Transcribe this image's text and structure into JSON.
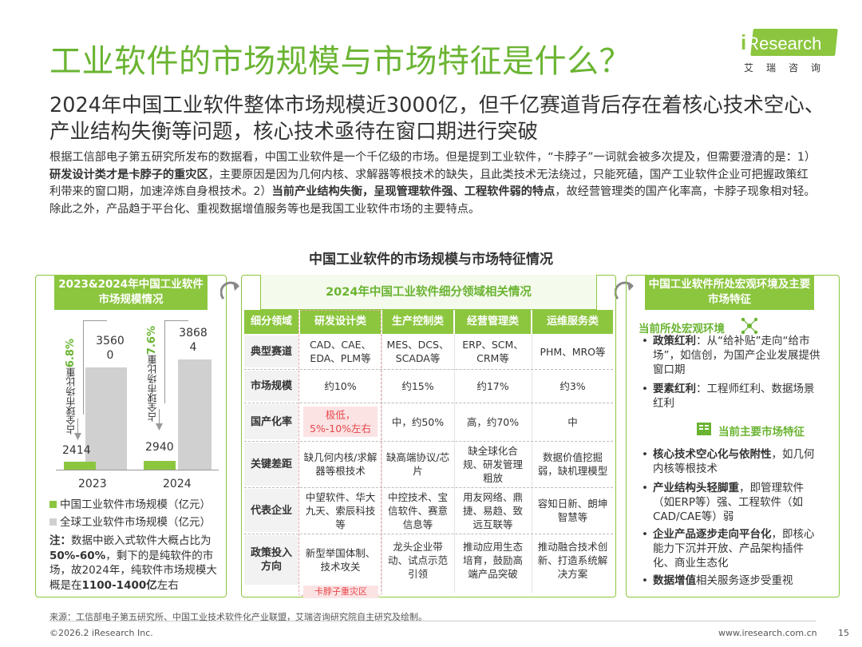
{
  "title": "工业软件的市场规模与市场特征是什么？",
  "logo": {
    "brand_i": "i",
    "brand_rest": "Research",
    "sub": "艾瑞咨询"
  },
  "subtitle": "2024年中国工业软件整体市场规模近3000亿，但千亿赛道背后存在着核心技术空心、产业结构失衡等问题，核心技术亟待在窗口期进行突破",
  "intro": {
    "p1": "根据工信部电子第五研究所发布的数据看，中国工业软件是一个千亿级的市场。但是提到工业软件，“卡脖子”一词就会被多次提及，但需要澄清的是：1）",
    "b1": "研发设计类才是卡脖子的重灾区",
    "p2": "，主要原因是因为几何内核、求解器等根技术的缺失，且此类技术无法绕过，只能死磕，国产工业软件企业可把握政策红利带来的窗口期，加速淬炼自身根技术。2）",
    "b2": "当前产业结构失衡，呈现管理软件强、工程软件弱的特点",
    "p3": "，故经营管理类的国产化率高，卡脖子现象相对轻。除此之外，产品趋于平台化、重视数据增值服务等也是我国工业软件市场的主要特点。"
  },
  "chart_title": "中国工业软件的市场规模与市场特征情况",
  "left_panel": {
    "header": "2023&2024年中国工业软件市场规模情况",
    "legend_china": "中国工业软件市场规模（亿元）",
    "legend_global": "全球工业软件市场规模（亿元）",
    "note_prefix": "注：",
    "note_1": "数据中嵌入式软件大概占比为",
    "note_b1": "50%-60%",
    "note_2": "，剩下的是纯软件的市场，故2024年，纯软件市场规模大概是在",
    "note_b2": "1100-1400亿",
    "note_3": "左右"
  },
  "chart_data": {
    "type": "bar",
    "categories": [
      "2023",
      "2024"
    ],
    "series": [
      {
        "name": "中国工业软件市场规模（亿元）",
        "values": [
          2414,
          2940
        ],
        "color": "#8cc63f"
      },
      {
        "name": "全球工业软件市场规模（亿元）",
        "values": [
          35600,
          38684
        ],
        "color": "#d0d0d0"
      }
    ],
    "value_labels": {
      "china": [
        "2414",
        "2940"
      ],
      "global_top": [
        "3560",
        "3868"
      ],
      "global_bottom": [
        "0",
        "4"
      ]
    },
    "share_labels": [
      {
        "prefix": "占全球市场比重",
        "value": "6.8%"
      },
      {
        "prefix": "占全球市场比重",
        "value": "7.6%"
      }
    ]
  },
  "middle_panel": {
    "header": "2024年中国工业软件细分领域相关情况",
    "columns": [
      "细分领域",
      "研发设计类",
      "生产控制类",
      "经营管理类",
      "运维服务类"
    ],
    "rows": [
      {
        "label": "典型赛道",
        "cells": [
          "CAD、CAE、EDA、PLM等",
          "MES、DCS、SCADA等",
          "ERP、SCM、CRM等",
          "PHM、MRO等"
        ]
      },
      {
        "label": "市场规模",
        "cells": [
          "约10%",
          "约15%",
          "约17%",
          "约3%"
        ]
      },
      {
        "label": "国产化率",
        "cells": [
          "极低，5%-10%左右",
          "中，约50%",
          "高，约70%",
          "中"
        ]
      },
      {
        "label": "关键差距",
        "cells": [
          "缺几何内核/求解器等根技术",
          "缺高端协议/芯片",
          "缺全球化合规、研发管理粗放",
          "数据价值挖掘弱，缺机理模型"
        ]
      },
      {
        "label": "代表企业",
        "cells": [
          "中望软件、华大九天、索辰科技等",
          "中控技术、宝信软件、赛意信息等",
          "用友网络、鼎捷、易趋、致远互联等",
          "容知日新、朗坤智慧等"
        ]
      },
      {
        "label": "政策投入方向",
        "cells": [
          "新型举国体制、技术攻关",
          "龙头企业带动、试点示范引领",
          "推动应用生态培育，鼓励高端产品突破",
          "推动融合技术创新、打造系统解决方案"
        ]
      }
    ],
    "choke_label": "卡脖子重灾区"
  },
  "right_panel": {
    "header": "中国工业软件所处宏观环境及主要市场特征",
    "sec1": "当前所处宏观环境",
    "sec1_items": [
      {
        "b": "政策红利",
        "t": "：从“给补贴”走向“给市场”，如信创，为国产企业发展提供窗口期"
      },
      {
        "b": "要素红利",
        "t": "：工程师红利、数据场景红利"
      }
    ],
    "sec2": "当前主要市场特征",
    "sec2_items": [
      {
        "b": "核心技术空心化与依附性",
        "t": "，如几何内核等根技术"
      },
      {
        "b": "产业结构头轻脚重",
        "t": "，即管理软件（如ERP等）强、工程软件（如CAD/CAE等）弱"
      },
      {
        "b": "企业产品逐步走向平台化",
        "t": "，即核心能力下沉并开放、产品架构插件化、商业生态化"
      },
      {
        "b": "数据增值",
        "t": "相关服务逐步受重视"
      }
    ]
  },
  "footer": {
    "source": "来源：工信部电子第五研究所、中国工业技术软件化产业联盟，艾瑞咨询研究院自主研究及绘制。",
    "copyright": "©2026.2 iResearch Inc.",
    "url": "www.iresearch.com.cn",
    "page": "15"
  }
}
